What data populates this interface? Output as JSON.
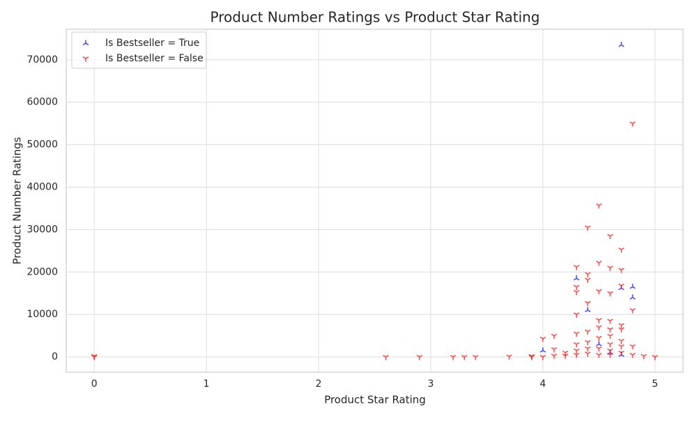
{
  "chart_data": {
    "type": "scatter",
    "title": "Product Number Ratings vs Product Star Rating",
    "x_label": "Product Star Rating",
    "y_label": "Product Number Ratings",
    "xlim": [
      -0.25,
      5.25
    ],
    "xticks": [
      0,
      1,
      2,
      3,
      4,
      5
    ],
    "ylim": [
      -3600,
      77200
    ],
    "yticks": [
      0,
      10000,
      20000,
      30000,
      40000,
      50000,
      60000,
      70000
    ],
    "grid": true,
    "legend": "upper left",
    "series": [
      {
        "name": "Is Bestseller = True",
        "color": "#0000ff",
        "marker": "tri_up",
        "x": [
          4.7,
          4.7,
          4.8,
          4.8,
          4.3,
          4.4,
          4.0,
          4.5,
          4.6,
          4.7
        ],
        "values": [
          73500,
          16200,
          16500,
          14000,
          18500,
          11000,
          1500,
          3000,
          1000,
          500
        ]
      },
      {
        "name": "Is Bestseller = False",
        "color": "#ff0000",
        "marker": "tri_down",
        "x": [
          0,
          0,
          2.6,
          2.9,
          3.2,
          3.3,
          3.4,
          3.7,
          3.9,
          3.9,
          4.0,
          4.0,
          4.1,
          4.1,
          4.1,
          4.2,
          4.2,
          4.3,
          4.3,
          4.3,
          4.3,
          4.3,
          4.3,
          4.3,
          4.3,
          4.4,
          4.4,
          4.4,
          4.4,
          4.4,
          4.4,
          4.4,
          4.4,
          4.5,
          4.5,
          4.5,
          4.5,
          4.5,
          4.5,
          4.5,
          4.5,
          4.6,
          4.6,
          4.6,
          4.6,
          4.6,
          4.6,
          4.6,
          4.6,
          4.6,
          4.7,
          4.7,
          4.7,
          4.7,
          4.7,
          4.7,
          4.7,
          4.7,
          4.8,
          4.8,
          4.8,
          4.8,
          4.9,
          5.0
        ],
        "values": [
          0,
          200,
          0,
          0,
          0,
          0,
          0,
          100,
          200,
          0,
          4300,
          0,
          5000,
          1800,
          300,
          1000,
          300,
          21200,
          16500,
          15300,
          10000,
          5500,
          3000,
          1500,
          500,
          30500,
          19500,
          18200,
          12700,
          6000,
          3500,
          2000,
          800,
          35700,
          22200,
          15500,
          8700,
          7000,
          4500,
          2000,
          500,
          28500,
          21000,
          15000,
          8500,
          6500,
          5000,
          3000,
          1500,
          500,
          25300,
          20500,
          16800,
          7500,
          6500,
          3800,
          2500,
          1000,
          55000,
          11000,
          2500,
          500,
          200,
          0
        ]
      }
    ]
  }
}
